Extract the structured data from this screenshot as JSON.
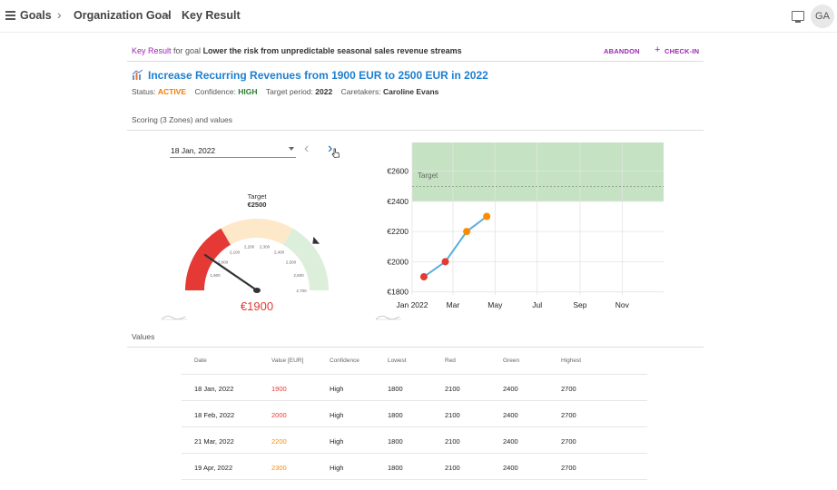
{
  "header": {
    "crumbs": [
      "Goals",
      "Organization Goal",
      "Key Result"
    ],
    "avatar_initials": "GA"
  },
  "subheader": {
    "prefix": "Key Result",
    "middle": " for goal ",
    "goal_name": "Lower the risk from unpredictable seasonal sales revenue streams",
    "abandon_label": "ABANDON",
    "checkin_label": "CHECK-IN"
  },
  "key_result": {
    "title": "Increase Recurring Revenues from 1900 EUR to 2500 EUR in 2022",
    "status_label": "Status:",
    "status_value": "ACTIVE",
    "confidence_label": "Confidence:",
    "confidence_value": "HIGH",
    "period_label": "Target period:",
    "period_value": "2022",
    "caretakers_label": "Caretakers:",
    "caretakers_value": "Caroline Evans"
  },
  "scoring": {
    "section_title": "Scoring (3 Zones) and values",
    "selected_date": "18 Jan, 2022"
  },
  "gauge": {
    "target_label": "Target",
    "target_value_text": "€2500",
    "current_value_text": "€1900",
    "value": 1900,
    "min": 1800,
    "max": 2700,
    "red_to": 2100,
    "yellow_to": 2400,
    "target": 2500,
    "ticks": [
      "1,900",
      "2,000",
      "2,100",
      "2,200",
      "2,300",
      "2,400",
      "2,500",
      "2,600",
      "2,700"
    ],
    "colors": {
      "red": "#e53935",
      "yellow": "#fde9c9",
      "green": "#dcefdb",
      "needle": "#333333",
      "value": "#e53935"
    }
  },
  "chart_data": {
    "type": "line",
    "x": [
      "2022-01-18",
      "2022-02-18",
      "2022-03-21",
      "2022-04-19"
    ],
    "y": [
      1900,
      2000,
      2200,
      2300
    ],
    "point_colors": [
      "#e53935",
      "#e53935",
      "#fb8c00",
      "#fb8c00"
    ],
    "x_tick_labels": [
      "Jan 2022",
      "Mar",
      "May",
      "Jul",
      "Sep",
      "Nov"
    ],
    "y_tick_labels": [
      "€1800",
      "€2000",
      "€2200",
      "€2400",
      "€2600"
    ],
    "y_ticks": [
      1800,
      2000,
      2200,
      2400,
      2600
    ],
    "ylim": [
      1780,
      2790
    ],
    "target": 2500,
    "target_label": "Target",
    "green_zone": [
      2400,
      2790
    ],
    "grid": true,
    "line_color": "#5aaedc",
    "zone_color": "#c5e3c2"
  },
  "values": {
    "section_title": "Values",
    "columns": [
      "Date",
      "Value [EUR]",
      "Confidence",
      "Lowest",
      "Red",
      "Green",
      "Highest"
    ],
    "rows": [
      {
        "date": "18 Jan, 2022",
        "value": "1900",
        "value_color": "#e53935",
        "confidence": "High",
        "lowest": "1800",
        "red": "2100",
        "green": "2400",
        "highest": "2700"
      },
      {
        "date": "18 Feb, 2022",
        "value": "2000",
        "value_color": "#e53935",
        "confidence": "High",
        "lowest": "1800",
        "red": "2100",
        "green": "2400",
        "highest": "2700"
      },
      {
        "date": "21 Mar, 2022",
        "value": "2200",
        "value_color": "#fb8c00",
        "confidence": "High",
        "lowest": "1800",
        "red": "2100",
        "green": "2400",
        "highest": "2700"
      },
      {
        "date": "19 Apr, 2022",
        "value": "2300",
        "value_color": "#fb8c00",
        "confidence": "High",
        "lowest": "1800",
        "red": "2100",
        "green": "2400",
        "highest": "2700"
      }
    ]
  }
}
